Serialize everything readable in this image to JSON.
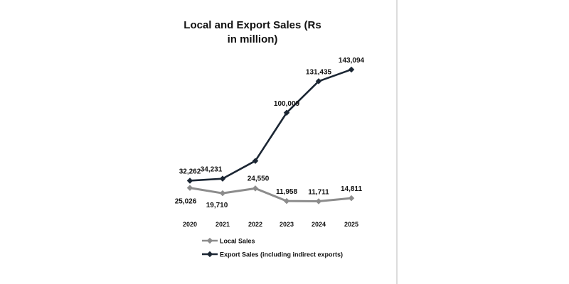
{
  "chart_data": {
    "type": "line",
    "title": "Local and Export Sales (Rs in million)",
    "xlabel": "",
    "ylabel": "",
    "categories": [
      "2020",
      "2021",
      "2022",
      "2023",
      "2024",
      "2025"
    ],
    "ylim": [
      0,
      150000
    ],
    "grid": false,
    "legend_position": "bottom-left",
    "series": [
      {
        "name": "Local Sales",
        "values": [
          25026,
          19710,
          24550,
          11958,
          11711,
          14811
        ],
        "labels": [
          "25,026",
          "19,710",
          "24,550",
          "11,958",
          "11,711",
          "14,811"
        ],
        "label_shown": [
          true,
          true,
          true,
          true,
          true,
          true
        ],
        "color": "#8c8c8c"
      },
      {
        "name": "Export Sales (including indirect exports)",
        "values": [
          32262,
          34231,
          52000,
          100009,
          131435,
          143094
        ],
        "labels": [
          "32,262",
          "34,231",
          "",
          "100,009",
          "131,435",
          "143,094"
        ],
        "label_shown": [
          true,
          true,
          false,
          true,
          true,
          true
        ],
        "color": "#1b2633"
      }
    ]
  }
}
